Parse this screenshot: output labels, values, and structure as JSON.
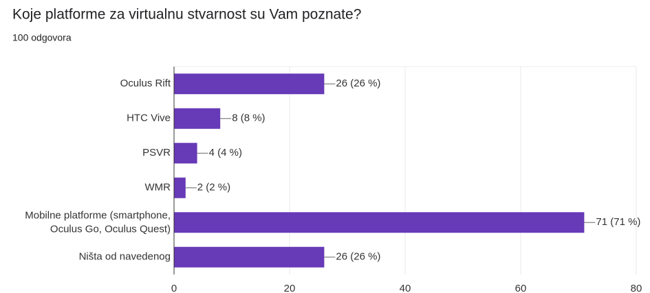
{
  "chart_data": {
    "type": "bar",
    "orientation": "horizontal",
    "title": "Koje platforme za virtualnu stvarnost su Vam poznate?",
    "subtitle": "100 odgovora",
    "categories": [
      "Oculus Rift",
      "HTC Vive",
      "PSVR",
      "WMR",
      "Mobilne platforme (smartphone,\nOculus Go, Oculus Quest)",
      "Ništa od navedenog"
    ],
    "values": [
      26,
      8,
      4,
      2,
      71,
      26
    ],
    "value_labels": [
      "26 (26 %)",
      "8 (8 %)",
      "4 (4 %)",
      "2 (2 %)",
      "71 (71 %)",
      "26 (26 %)"
    ],
    "color": "#673ab7",
    "xlim": [
      0,
      80
    ],
    "xticks": [
      0,
      20,
      40,
      60,
      80
    ],
    "grid": true
  }
}
